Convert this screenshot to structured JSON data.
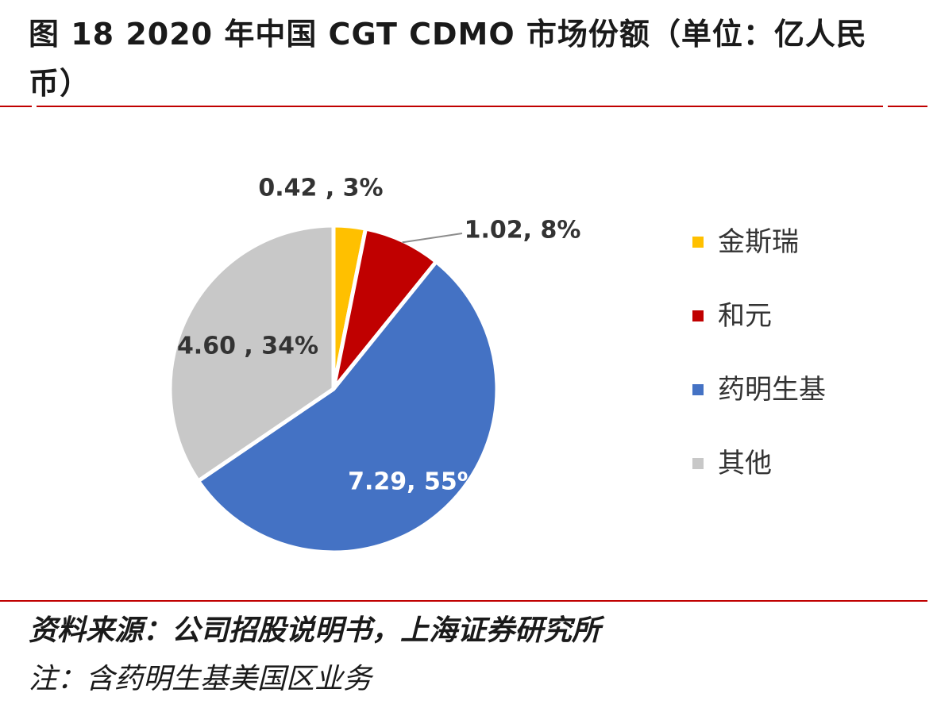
{
  "figure": {
    "title": "图 18 2020 年中国 CGT CDMO 市场份额（单位：亿人民币）",
    "source": "资料来源：公司招股说明书，上海证券研究所",
    "note": "注：含药明生基美国区业务"
  },
  "chart_data": {
    "type": "pie",
    "title": "图 18 2020 年中国 CGT CDMO 市场份额（单位：亿人民币）",
    "unit": "亿人民币",
    "legend_position": "right",
    "categories": [
      "金斯瑞",
      "和元",
      "药明生基",
      "其他"
    ],
    "values": [
      0.42,
      1.02,
      7.29,
      4.6
    ],
    "percentages": [
      3,
      8,
      55,
      34
    ],
    "colors": [
      "#ffc000",
      "#c00000",
      "#4472c4",
      "#c8c8c8"
    ],
    "data_labels": [
      "0.42 , 3%",
      "1.02, 8%",
      "7.29, 55%",
      "4.60 , 34%"
    ]
  }
}
